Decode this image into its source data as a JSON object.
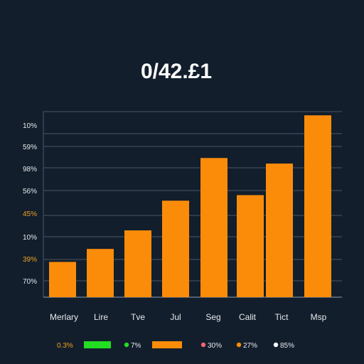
{
  "colors": {
    "background": "#121e2c",
    "bar": "#fb8c0a",
    "grid": "#4a5566",
    "axis_label": "#e6e8ec",
    "axis_label_highlight": "#f0a020",
    "title": "#ffffff"
  },
  "chart_data": {
    "type": "bar",
    "title": "0/42.£1",
    "xlabel": "",
    "ylabel": "",
    "grid": true,
    "legend_position": "bottom",
    "ylim": [
      0,
      100
    ],
    "y_ticks": [
      {
        "label": "70%",
        "highlight": false
      },
      {
        "label": "39%",
        "highlight": true
      },
      {
        "label": "10%",
        "highlight": false
      },
      {
        "label": "45%",
        "highlight": true
      },
      {
        "label": "56%",
        "highlight": false
      },
      {
        "label": "98%",
        "highlight": false
      },
      {
        "label": "59%",
        "highlight": false
      },
      {
        "label": "10%",
        "highlight": false
      }
    ],
    "categories": [
      "Merlary",
      "Lire",
      "Tve",
      "Jul",
      "Seg",
      "Calit",
      "Tict",
      "Msp"
    ],
    "values": [
      19,
      26,
      36,
      52,
      75,
      55,
      72,
      98
    ],
    "legend": [
      {
        "label": "0.3%",
        "marker": "text-only",
        "color": "#f0a020"
      },
      {
        "label": "",
        "marker": "bar",
        "color": "#22dd22"
      },
      {
        "label": "7%",
        "marker": "dot",
        "color": "#22dd22"
      },
      {
        "label": "",
        "marker": "bar",
        "color": "#fb8c0a"
      },
      {
        "label": "30%",
        "marker": "dot",
        "color": "#ee6677"
      },
      {
        "label": "27%",
        "marker": "dot",
        "color": "#fb8c0a"
      },
      {
        "label": "85%",
        "marker": "dot",
        "color": "#ffffff"
      }
    ]
  }
}
